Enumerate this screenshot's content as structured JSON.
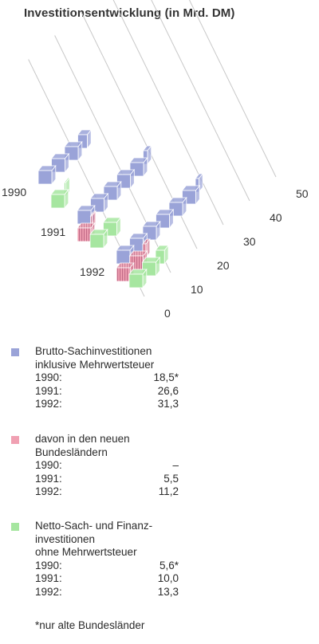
{
  "chart_data": {
    "type": "bar",
    "title": "Investitionsentwicklung (in Mrd. DM)",
    "categories": [
      "1990",
      "1991",
      "1992"
    ],
    "series": [
      {
        "name": "Brutto-Sachinvestitionen inklusive Mehrwertsteuer",
        "values": [
          18.5,
          26.6,
          31.3
        ]
      },
      {
        "name": "davon in den neuen Bundesländern",
        "values": [
          0,
          5.5,
          11.2
        ]
      },
      {
        "name": "Netto-Sach- und Finanzinvestitionen ohne Mehrwertsteuer",
        "values": [
          5.6,
          10.0,
          13.3
        ]
      }
    ],
    "axis_ticks": [
      "0",
      "10",
      "20",
      "30",
      "40",
      "50"
    ],
    "ylim": [
      0,
      50
    ],
    "unit_value": 5,
    "colors": {
      "gross": "#9aa3d8",
      "east": "#f0a0b2",
      "east_stripe": "#c26b88",
      "net": "#a6e6a0"
    }
  },
  "legend": [
    {
      "label": "Brutto-Sachinvestitionen\ninklusive Mehrwertsteuer",
      "color": "#9aa3d8",
      "rows": [
        {
          "year": "1990:",
          "value": "18,5*"
        },
        {
          "year": "1991:",
          "value": "26,6"
        },
        {
          "year": "1992:",
          "value": "31,3"
        }
      ]
    },
    {
      "label": "davon in den neuen\nBundesländern",
      "color": "#f0a0b2",
      "rows": [
        {
          "year": "1990:",
          "value": "–"
        },
        {
          "year": "1991:",
          "value": "5,5"
        },
        {
          "year": "1992:",
          "value": "11,2"
        }
      ]
    },
    {
      "label": "Netto-Sach- und Finanz-\ninvestitionen\nohne Mehrwertsteuer",
      "color": "#a6e6a0",
      "rows": [
        {
          "year": "1990:",
          "value": "5,6*"
        },
        {
          "year": "1991:",
          "value": "10,0"
        },
        {
          "year": "1992:",
          "value": "13,3"
        }
      ]
    }
  ],
  "footnote": "*nur alte Bundesländer"
}
